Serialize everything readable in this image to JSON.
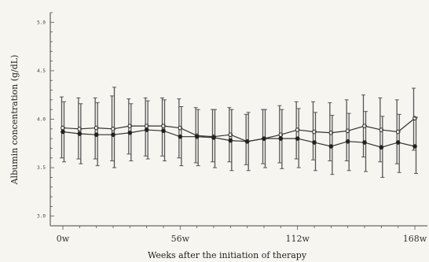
{
  "chart_data": {
    "type": "line",
    "xlabel": "Weeks after the initiation of therapy",
    "ylabel": "Albumin concentration (g/dL)",
    "ylim": [
      2.9,
      5.1
    ],
    "yticks": [
      3.0,
      3.5,
      4.0,
      4.5,
      5.0
    ],
    "ytick_labels": [
      "3.0",
      "3.5",
      "4.0",
      "4.5",
      "5.0"
    ],
    "xlim": [
      -6,
      174
    ],
    "xticks": [
      0,
      56,
      112,
      168
    ],
    "xtick_labels": [
      "0w",
      "56w",
      "112w",
      "168w"
    ],
    "grid": false,
    "legend": "none",
    "x": [
      0,
      8,
      16,
      24,
      32,
      40,
      48,
      56,
      64,
      72,
      80,
      88,
      96,
      104,
      112,
      120,
      128,
      136,
      144,
      152,
      160,
      168
    ],
    "series": [
      {
        "marker": "open-circle",
        "values": [
          3.91,
          3.9,
          3.91,
          3.9,
          3.93,
          3.93,
          3.93,
          3.91,
          3.83,
          3.82,
          3.84,
          3.77,
          3.8,
          3.84,
          3.89,
          3.87,
          3.86,
          3.88,
          3.93,
          3.89,
          3.87,
          4.01
        ],
        "err_low": [
          3.6,
          3.59,
          3.59,
          3.57,
          3.64,
          3.62,
          3.62,
          3.6,
          3.55,
          3.56,
          3.56,
          3.53,
          3.54,
          3.55,
          3.59,
          3.58,
          3.57,
          3.57,
          3.61,
          3.56,
          3.54,
          3.68
        ],
        "err_high": [
          4.23,
          4.22,
          4.22,
          4.24,
          4.21,
          4.22,
          4.22,
          4.21,
          4.12,
          4.1,
          4.12,
          4.05,
          4.1,
          4.14,
          4.18,
          4.18,
          4.17,
          4.2,
          4.25,
          4.22,
          4.2,
          4.32
        ]
      },
      {
        "marker": "filled-circle",
        "values": [
          3.87,
          3.85,
          3.84,
          3.84,
          3.86,
          3.89,
          3.88,
          3.82,
          3.82,
          3.81,
          3.78,
          3.77,
          3.8,
          3.8,
          3.8,
          3.76,
          3.72,
          3.77,
          3.76,
          3.71,
          3.76,
          3.72
        ],
        "err_low": [
          3.56,
          3.54,
          3.52,
          3.5,
          3.57,
          3.59,
          3.57,
          3.52,
          3.52,
          3.5,
          3.47,
          3.47,
          3.5,
          3.49,
          3.5,
          3.47,
          3.43,
          3.47,
          3.46,
          3.4,
          3.45,
          3.44
        ],
        "err_high": [
          4.18,
          4.16,
          4.17,
          4.33,
          4.16,
          4.19,
          4.2,
          4.13,
          4.1,
          4.1,
          4.1,
          4.07,
          4.1,
          4.1,
          4.11,
          4.07,
          4.04,
          4.06,
          4.08,
          4.03,
          4.05,
          4.02
        ]
      }
    ]
  }
}
